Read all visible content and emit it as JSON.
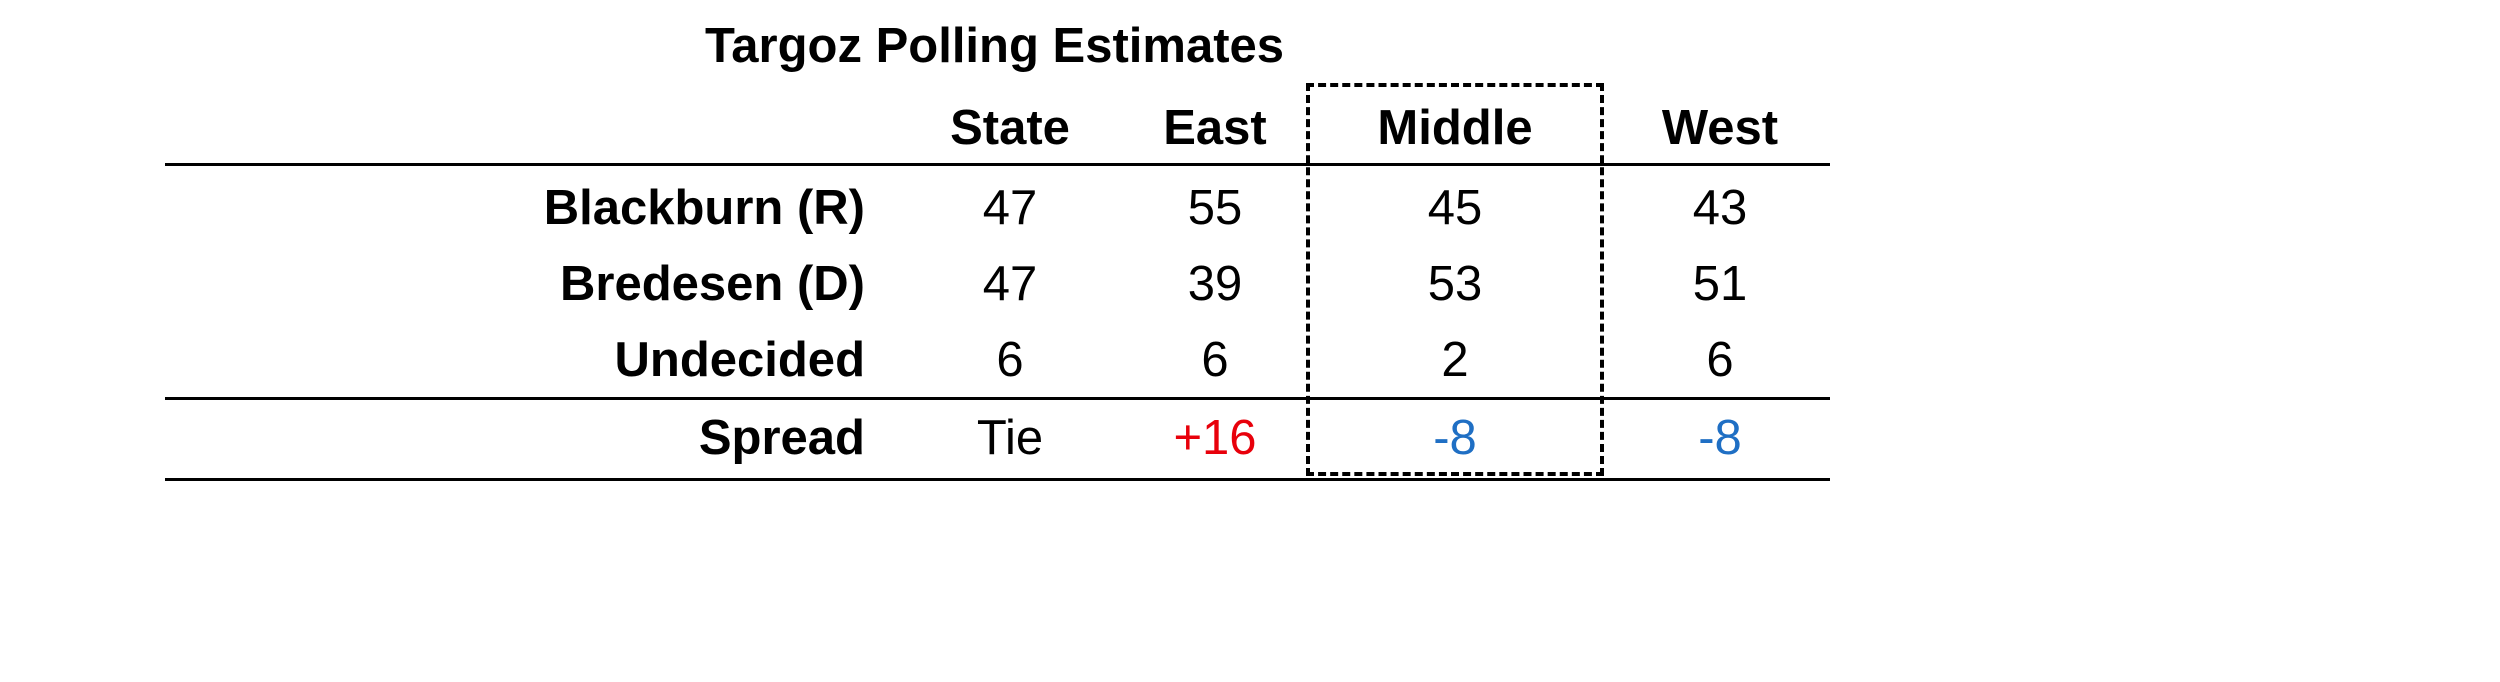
{
  "title": "Targoz Polling Estimates",
  "columns": [
    "State",
    "East",
    "Middle",
    "West"
  ],
  "rows": [
    {
      "label": "Blackburn (R)",
      "values": [
        "47",
        "55",
        "45",
        "43"
      ]
    },
    {
      "label": "Bredesen (D)",
      "values": [
        "47",
        "39",
        "53",
        "51"
      ]
    },
    {
      "label": "Undecided",
      "values": [
        "6",
        "6",
        "2",
        "6"
      ]
    }
  ],
  "spread": {
    "label": "Spread",
    "values": [
      "Tie",
      "+16",
      "-8",
      "-8"
    ],
    "colors": [
      "#000000",
      "#e8000b",
      "#1f6fc4",
      "#1f6fc4"
    ]
  },
  "highlight_column": "Middle",
  "chart_data": {
    "type": "table",
    "title": "Targoz Polling Estimates",
    "columns": [
      "",
      "State",
      "East",
      "Middle",
      "West"
    ],
    "rows": [
      [
        "Blackburn (R)",
        47,
        55,
        45,
        43
      ],
      [
        "Bredesen (D)",
        47,
        39,
        53,
        51
      ],
      [
        "Undecided",
        6,
        6,
        2,
        6
      ],
      [
        "Spread",
        "Tie",
        "+16",
        "-8",
        "-8"
      ]
    ]
  }
}
